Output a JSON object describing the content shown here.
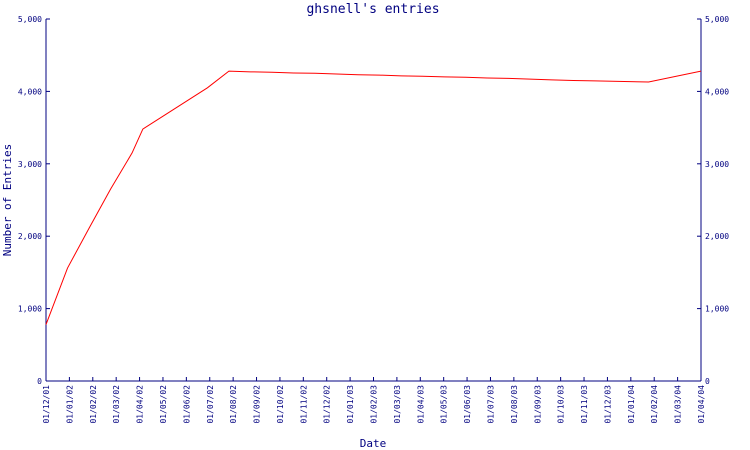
{
  "chart_data": {
    "type": "line",
    "title": "ghsnell's entries",
    "xlabel": "Date",
    "ylabel": "Number of Entries",
    "ylim": [
      0,
      5000
    ],
    "yticks": [
      "0",
      "1,000",
      "2,000",
      "3,000",
      "4,000",
      "5,000"
    ],
    "right_axis": true,
    "grid": false,
    "x_categories": [
      "01/12/01",
      "01/01/02",
      "01/02/02",
      "01/03/02",
      "01/04/02",
      "01/05/02",
      "01/06/02",
      "01/07/02",
      "01/08/02",
      "01/09/02",
      "01/10/02",
      "01/11/02",
      "01/12/02",
      "01/01/03",
      "01/02/03",
      "01/03/03",
      "01/04/03",
      "01/05/03",
      "01/06/03",
      "01/07/03",
      "01/08/03",
      "01/09/03",
      "01/10/03",
      "01/11/03",
      "01/12/03",
      "01/01/04",
      "01/02/04",
      "01/03/04",
      "01/04/04"
    ],
    "series": [
      {
        "color": "#ff0000",
        "values": [
          780,
          1560,
          2110,
          2650,
          3150,
          3480,
          3670,
          3860,
          4050,
          4280,
          4270,
          4265,
          4255,
          4250,
          4240,
          4230,
          4225,
          4215,
          4210,
          4200,
          4195,
          4185,
          4180,
          4170,
          4160,
          4150,
          4145,
          4130,
          4280
        ]
      }
    ],
    "series_x": [
      0,
      0.92,
      1.84,
      2.76,
      3.68,
      4.14,
      5.06,
      5.98,
      6.9,
      7.82,
      8.74,
      9.66,
      10.58,
      11.5,
      12.42,
      13.34,
      14.26,
      15.18,
      16.1,
      17.02,
      17.94,
      18.86,
      19.78,
      20.7,
      21.62,
      22.54,
      23.46,
      25.76,
      28
    ]
  }
}
